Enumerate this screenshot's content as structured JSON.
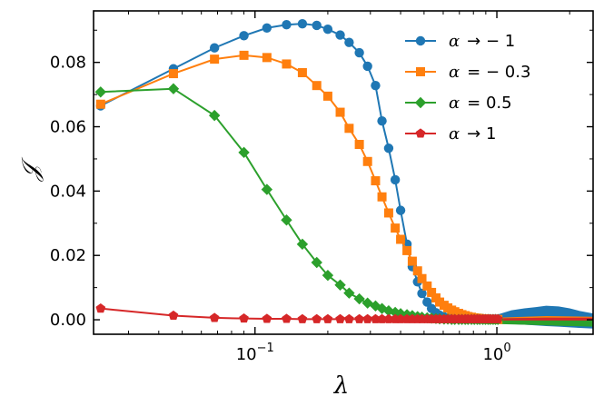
{
  "chart_data": {
    "type": "line",
    "title": "",
    "xlabel": "λ",
    "ylabel": "𝒥",
    "xscale": "log",
    "xlim": [
      0.0215,
      2.5
    ],
    "ylim": [
      -0.0045,
      0.096
    ],
    "yticks": [
      "0.00",
      "0.02",
      "0.04",
      "0.06",
      "0.08"
    ],
    "xticks": [
      {
        "value": 0.1,
        "base": "10",
        "exp": "−1"
      },
      {
        "value": 1,
        "base": "10",
        "exp": "0"
      }
    ],
    "grid": false,
    "legend_position": "top-right",
    "series": [
      {
        "name": "α → − 1",
        "legend_parts": [
          "α",
          "→ − 1"
        ],
        "color": "#1f77b4",
        "marker": "circle",
        "x": [
          0.023,
          0.046,
          0.068,
          0.09,
          0.112,
          0.135,
          0.157,
          0.18,
          0.2,
          0.225,
          0.245,
          0.27,
          0.292,
          0.315,
          0.335,
          0.357,
          0.38,
          0.4,
          0.425,
          0.447,
          0.47,
          0.49,
          0.515,
          0.537,
          0.56,
          0.58,
          0.605,
          0.627,
          0.65,
          0.67,
          0.695,
          0.717,
          0.74,
          0.76,
          0.785,
          0.807,
          0.83,
          0.85,
          0.875,
          0.897,
          0.92,
          0.94,
          0.965,
          0.987,
          1.01
        ],
        "y": [
          0.0665,
          0.078,
          0.0845,
          0.0883,
          0.0907,
          0.0917,
          0.092,
          0.0915,
          0.0903,
          0.0885,
          0.0862,
          0.083,
          0.0788,
          0.0728,
          0.0618,
          0.0533,
          0.0435,
          0.034,
          0.0235,
          0.0165,
          0.0118,
          0.0082,
          0.0055,
          0.0035,
          0.0022,
          0.0014,
          0.0009,
          0.0006,
          0.0004,
          0.0003,
          0.0002,
          0.0002,
          0.0002,
          0.0002,
          0.0002,
          0.0002,
          0.0002,
          0.0002,
          0.0002,
          0.0002,
          0.0002,
          0.0002,
          0.0002,
          0.0002,
          0.0002
        ],
        "tail": {
          "x": [
            1.01,
            1.15,
            1.3,
            1.45,
            1.6,
            1.8,
            2.0,
            2.2,
            2.5
          ],
          "upper": [
            0.0015,
            0.0028,
            0.0034,
            0.0038,
            0.0042,
            0.004,
            0.0034,
            0.0026,
            0.0018
          ],
          "lower": [
            -0.001,
            -0.0012,
            -0.0014,
            -0.0016,
            -0.0018,
            -0.002,
            -0.0022,
            -0.0024,
            -0.0026
          ]
        }
      },
      {
        "name": "α = − 0.3",
        "legend_parts": [
          "α",
          "= − 0.3"
        ],
        "color": "#ff7f0e",
        "marker": "square",
        "x": [
          0.023,
          0.046,
          0.068,
          0.09,
          0.112,
          0.135,
          0.157,
          0.18,
          0.2,
          0.225,
          0.245,
          0.27,
          0.292,
          0.315,
          0.335,
          0.357,
          0.38,
          0.4,
          0.425,
          0.447,
          0.47,
          0.49,
          0.515,
          0.537,
          0.56,
          0.58,
          0.605,
          0.627,
          0.65,
          0.67,
          0.695,
          0.717,
          0.74,
          0.76,
          0.785,
          0.807,
          0.83,
          0.85,
          0.875,
          0.897,
          0.92,
          0.94,
          0.965,
          0.987,
          1.01
        ],
        "y": [
          0.067,
          0.0765,
          0.081,
          0.0822,
          0.0815,
          0.0795,
          0.0768,
          0.0728,
          0.0695,
          0.0645,
          0.0595,
          0.0545,
          0.0492,
          0.0432,
          0.0382,
          0.0332,
          0.0285,
          0.025,
          0.0215,
          0.0182,
          0.0152,
          0.0128,
          0.0105,
          0.0085,
          0.0068,
          0.0055,
          0.0045,
          0.0037,
          0.003,
          0.0025,
          0.002,
          0.0016,
          0.0013,
          0.001,
          0.0008,
          0.0006,
          0.0005,
          0.0004,
          0.0003,
          0.0002,
          0.0002,
          0.0001,
          0.0001,
          0.0001,
          0.0001
        ],
        "tail": {
          "x": [
            1.01,
            1.3,
            1.6,
            2.0,
            2.5
          ],
          "upper": [
            0.0005,
            0.0008,
            0.001,
            0.0009,
            0.0008
          ],
          "lower": [
            -0.0005,
            -0.0008,
            -0.001,
            -0.0011,
            -0.0012
          ]
        }
      },
      {
        "name": "α = 0.5",
        "legend_parts": [
          "α",
          "= 0.5"
        ],
        "color": "#2ca02c",
        "marker": "diamond",
        "x": [
          0.023,
          0.046,
          0.068,
          0.09,
          0.112,
          0.135,
          0.157,
          0.18,
          0.2,
          0.225,
          0.245,
          0.27,
          0.292,
          0.315,
          0.335,
          0.357,
          0.38,
          0.4,
          0.425,
          0.447,
          0.47,
          0.49,
          0.515,
          0.537,
          0.56,
          0.58,
          0.605,
          0.627,
          0.65,
          0.67,
          0.695,
          0.717,
          0.74,
          0.76,
          0.785,
          0.807,
          0.83,
          0.85,
          0.875,
          0.897,
          0.92,
          0.94,
          0.965,
          0.987,
          1.01
        ],
        "y": [
          0.0708,
          0.0718,
          0.0635,
          0.052,
          0.0405,
          0.031,
          0.0235,
          0.0178,
          0.0138,
          0.0108,
          0.0083,
          0.0065,
          0.0052,
          0.0043,
          0.0035,
          0.0028,
          0.0023,
          0.0019,
          0.0016,
          0.0013,
          0.001,
          0.0008,
          0.0006,
          0.0005,
          0.0004,
          0.0003,
          0.0002,
          0.0002,
          0.0001,
          0.0001,
          0.0001,
          0.0001,
          0.0001,
          0.0001,
          0.0001,
          0.0001,
          0.0001,
          0.0001,
          0.0001,
          0.0001,
          0.0001,
          0.0001,
          0.0001,
          0.0001,
          0.0001
        ],
        "tail": {
          "x": [
            1.01,
            1.3,
            1.6,
            2.0,
            2.5
          ],
          "upper": [
            0.0003,
            0.0004,
            0.0005,
            0.0004,
            0.0004
          ],
          "lower": [
            -0.0012,
            -0.0014,
            -0.0016,
            -0.0018,
            -0.002
          ]
        }
      },
      {
        "name": "α → 1",
        "legend_parts": [
          "α",
          "→ 1"
        ],
        "color": "#d62728",
        "marker": "pentagon",
        "x": [
          0.023,
          0.046,
          0.068,
          0.09,
          0.112,
          0.135,
          0.157,
          0.18,
          0.2,
          0.225,
          0.245,
          0.27,
          0.292,
          0.315,
          0.335,
          0.357,
          0.38,
          0.4,
          0.425,
          0.447,
          0.47,
          0.49,
          0.515,
          0.537,
          0.56,
          0.58,
          0.605,
          0.627,
          0.65,
          0.67,
          0.695,
          0.717,
          0.74,
          0.76,
          0.785,
          0.807,
          0.83,
          0.85,
          0.875,
          0.897,
          0.92,
          0.94,
          0.965,
          0.987,
          1.01
        ],
        "y": [
          0.0035,
          0.0013,
          0.0006,
          0.0004,
          0.0003,
          0.0003,
          0.0002,
          0.0002,
          0.0002,
          0.0002,
          0.0002,
          0.0002,
          0.0002,
          0.0002,
          0.0002,
          0.0002,
          0.0002,
          0.0002,
          0.0002,
          0.0002,
          0.0002,
          0.0002,
          0.0002,
          0.0002,
          0.0002,
          0.0002,
          0.0002,
          0.0002,
          0.0002,
          0.0002,
          0.0002,
          0.0002,
          0.0002,
          0.0002,
          0.0002,
          0.0002,
          0.0002,
          0.0002,
          0.0002,
          0.0002,
          0.0002,
          0.0002,
          0.0002,
          0.0002,
          0.0002
        ],
        "tail": {
          "x": [
            1.01,
            1.3,
            1.6,
            2.0,
            2.5
          ],
          "upper": [
            0.0003,
            0.0004,
            0.0005,
            0.0005,
            0.0005
          ],
          "lower": [
            -0.0001,
            -0.0001,
            -0.0001,
            -0.0001,
            -0.0001
          ]
        }
      }
    ]
  }
}
